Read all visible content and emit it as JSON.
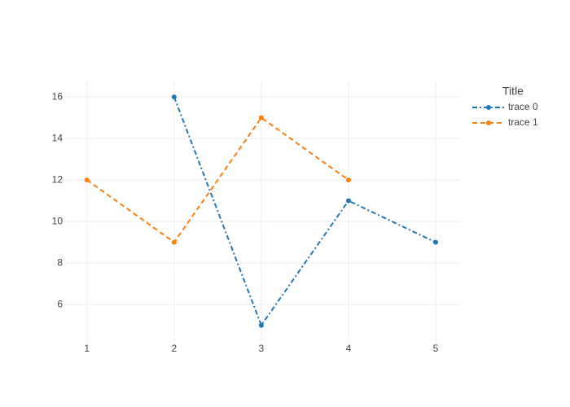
{
  "chart_data": {
    "type": "line",
    "legend_title": "Title",
    "series": [
      {
        "name": "trace 0",
        "color": "#1f77b4",
        "dash": "dashdot",
        "x": [
          2,
          3,
          4,
          5
        ],
        "values": [
          16,
          5,
          11,
          9
        ]
      },
      {
        "name": "trace 1",
        "color": "#ff7f0e",
        "dash": "dash",
        "x": [
          1,
          2,
          3,
          4
        ],
        "values": [
          12,
          9,
          15,
          12
        ]
      }
    ],
    "xlim": [
      0.75,
      5.28
    ],
    "xticks": [
      1,
      2,
      3,
      4,
      5
    ],
    "ylim": [
      4.2,
      16.75
    ],
    "yticks": [
      6,
      8,
      10,
      12,
      14,
      16
    ],
    "grid": true,
    "legend": "right"
  }
}
